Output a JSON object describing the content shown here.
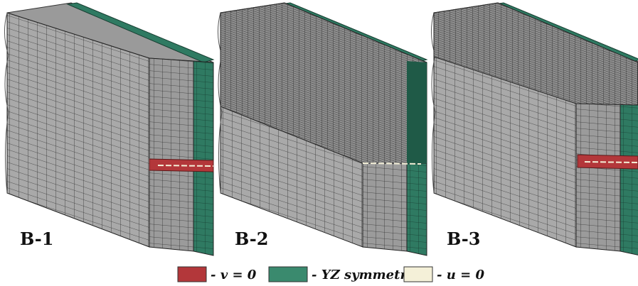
{
  "panels": [
    {
      "label": "B-1"
    },
    {
      "label": "B-2"
    },
    {
      "label": "B-3"
    }
  ],
  "legend": [
    {
      "text": "- v = 0"
    },
    {
      "text": "- YZ symmetry"
    },
    {
      "text": "- u = 0"
    }
  ]
}
